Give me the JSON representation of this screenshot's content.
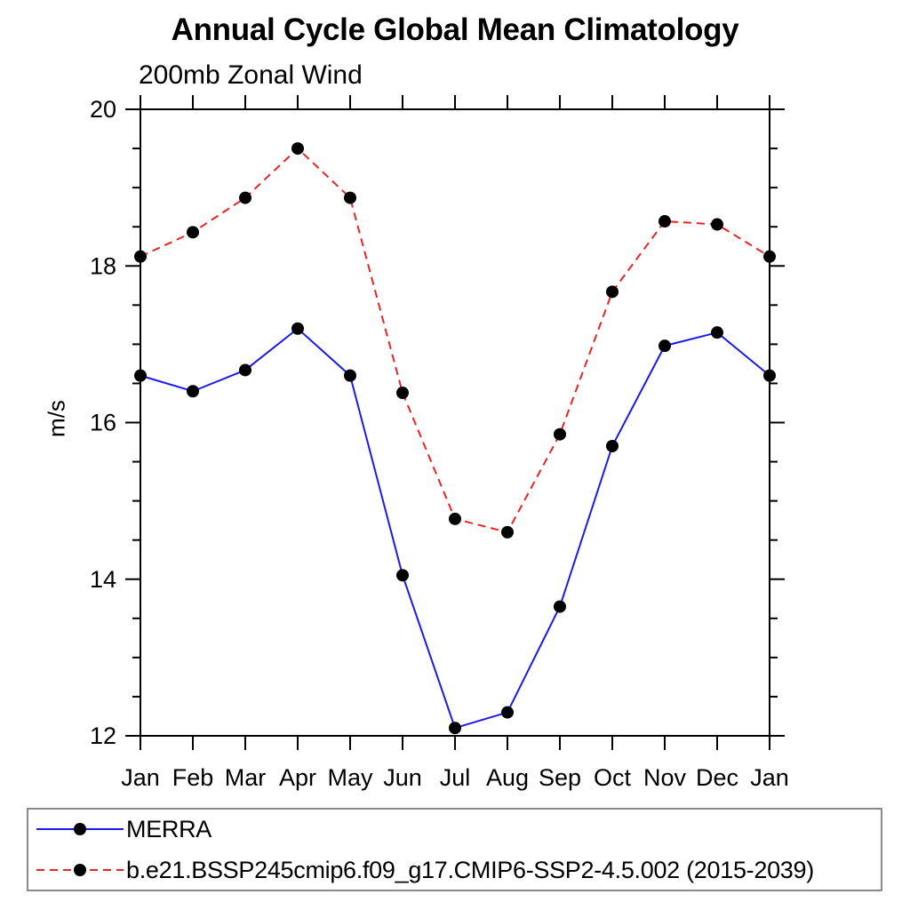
{
  "chart_data": {
    "type": "line",
    "title": "Annual Cycle Global Mean Climatology",
    "subtitle": "200mb Zonal Wind",
    "xlabel": "",
    "ylabel": "m/s",
    "categories": [
      "Jan",
      "Feb",
      "Mar",
      "Apr",
      "May",
      "Jun",
      "Jul",
      "Aug",
      "Sep",
      "Oct",
      "Nov",
      "Dec",
      "Jan"
    ],
    "ylim": [
      12,
      20
    ],
    "yticks_major": [
      12,
      14,
      16,
      18,
      20
    ],
    "ytick_minor_step": 0.5,
    "grid": false,
    "legend_position": "bottom box, below axis",
    "axis_color": "#000000",
    "legend_border_color": "#8a8a8a",
    "series": [
      {
        "name": "MERRA",
        "color": "#1a1aee",
        "line_style": "solid",
        "marker": "filled-circle",
        "marker_color": "#000000",
        "values": [
          16.6,
          16.4,
          16.67,
          17.2,
          16.6,
          14.05,
          12.1,
          12.3,
          13.65,
          15.7,
          16.98,
          17.15,
          16.6
        ]
      },
      {
        "name": "b.e21.BSSP245cmip6.f09_g17.CMIP6-SSP2-4.5.002 (2015-2039)",
        "color": "#ee2222",
        "line_style": "dashed",
        "marker": "filled-circle",
        "marker_color": "#000000",
        "values": [
          18.12,
          18.43,
          18.87,
          19.5,
          18.87,
          16.38,
          14.77,
          14.6,
          15.85,
          17.67,
          18.57,
          18.53,
          18.12
        ]
      }
    ]
  }
}
